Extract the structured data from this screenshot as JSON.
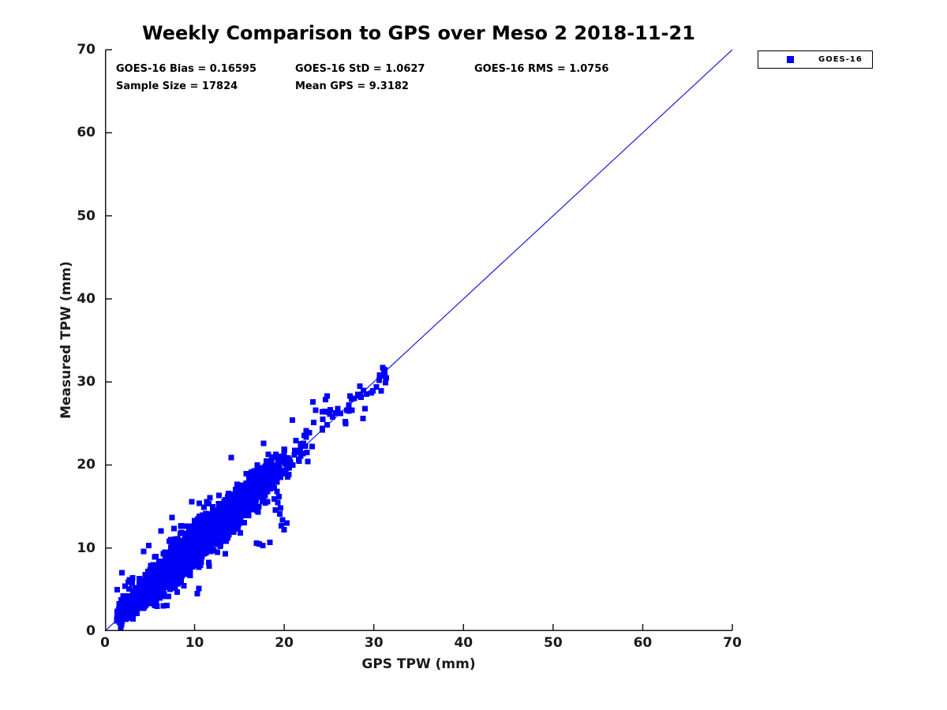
{
  "chart_data": {
    "type": "scatter",
    "title": "Weekly Comparison to GPS over Meso 2 2018-11-21",
    "xlabel": "GPS TPW (mm)",
    "ylabel": "Measured TPW (mm)",
    "xlim": [
      0,
      70
    ],
    "ylim": [
      0,
      70
    ],
    "xticks": [
      0,
      10,
      20,
      30,
      40,
      50,
      60,
      70
    ],
    "yticks": [
      0,
      10,
      20,
      30,
      40,
      50,
      60,
      70
    ],
    "grid": false,
    "axis_color": "#1a1a1a",
    "stats": {
      "bias": 0.16595,
      "std": 1.0627,
      "rms": 1.0756,
      "sample_size": 17824,
      "mean_gps": 9.3182
    },
    "annotations": {
      "bias": "GOES-16 Bias = 0.16595",
      "std": "GOES-16 StD = 1.0627",
      "rms": "GOES-16 RMS = 1.0756",
      "sample_size": "Sample Size = 17824",
      "mean_gps": "Mean GPS = 9.3182"
    },
    "legend": {
      "label": "GOES-16",
      "position": "top-right-outside",
      "marker": "square",
      "marker_color": "#0000fa"
    },
    "identity_line": {
      "from": [
        0,
        0
      ],
      "to": [
        70,
        70
      ],
      "color": "#2b2bd9",
      "width": 1.3
    },
    "series": [
      {
        "name": "GOES-16",
        "marker": "square",
        "marker_size_px": 7,
        "color": "#0000fa",
        "n_points": 17824,
        "x_range_observed": [
          1.1,
          31.5
        ],
        "y_range_observed": [
          1.4,
          31.3
        ]
      }
    ],
    "point_cloud": {
      "seed": 20181121,
      "n_render_points": 3000,
      "x_components": [
        {
          "weight": 0.62,
          "mean": 8.2,
          "sd": 3.4,
          "min": 1.3,
          "max": 19.5
        },
        {
          "weight": 0.38,
          "mean": 12.8,
          "sd": 4.2,
          "min": 1.8,
          "max": 21.8
        }
      ],
      "bias": 0.17,
      "noise_sd": 1.06,
      "wide_noise_sd": 2.3,
      "wide_noise_fraction": 0.055,
      "y_min": 0.4,
      "tail": {
        "n": 42,
        "x_min": 21.8,
        "x_span": 9.6,
        "shape_exponent": 1.7,
        "noise_sd": 0.95
      }
    },
    "feature_points": [
      [
        17.7,
        22.6
      ],
      [
        14.1,
        20.9
      ],
      [
        19.2,
        16.8
      ],
      [
        19.4,
        16.2
      ],
      [
        19.3,
        15.5
      ],
      [
        19.6,
        14.8
      ],
      [
        19.5,
        14.1
      ],
      [
        19.8,
        13.4
      ],
      [
        19.7,
        12.7
      ],
      [
        20.0,
        12.2
      ],
      [
        18.9,
        15.9
      ],
      [
        19.0,
        14.6
      ],
      [
        20.3,
        13.0
      ],
      [
        17.2,
        10.5
      ],
      [
        17.6,
        10.3
      ],
      [
        18.4,
        10.7
      ],
      [
        16.9,
        10.6
      ],
      [
        2.6,
        5.9
      ],
      [
        2.7,
        5.1
      ],
      [
        4.3,
        9.6
      ],
      [
        3.1,
        6.4
      ],
      [
        22.8,
        23.9
      ],
      [
        23.2,
        27.6
      ],
      [
        23.5,
        26.6
      ],
      [
        23.3,
        25.1
      ],
      [
        24.6,
        27.9
      ],
      [
        24.8,
        28.3
      ],
      [
        25.1,
        26.1
      ],
      [
        24.3,
        25.5
      ],
      [
        25.4,
        25.8
      ],
      [
        26.3,
        26.2
      ],
      [
        26.8,
        25.2
      ],
      [
        27.2,
        26.5
      ],
      [
        28.2,
        28.5
      ],
      [
        28.5,
        28.3
      ],
      [
        28.8,
        25.6
      ],
      [
        29.0,
        26.8
      ],
      [
        29.9,
        28.9
      ],
      [
        30.3,
        29.4
      ],
      [
        30.6,
        30.2
      ],
      [
        30.9,
        30.7
      ],
      [
        31.2,
        31.0
      ],
      [
        31.4,
        30.5
      ],
      [
        30.8,
        28.9
      ],
      [
        31.3,
        29.9
      ]
    ]
  }
}
